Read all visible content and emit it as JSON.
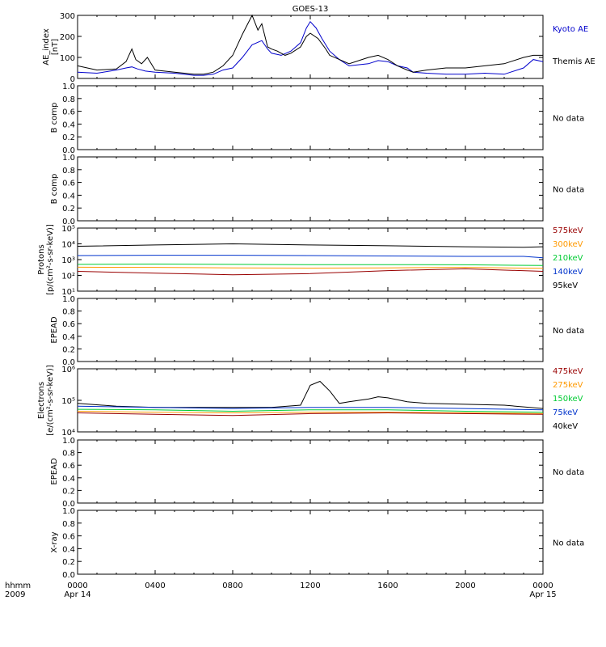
{
  "title": "GOES-13",
  "x_axis": {
    "label_line1": "hhmm",
    "label_line2": "2009",
    "ticks": [
      "0000",
      "0400",
      "0800",
      "1200",
      "1600",
      "2000",
      "0000"
    ],
    "date_labels": [
      "Apr 14",
      "Apr 15"
    ]
  },
  "chart_data": [
    {
      "type": "line",
      "ylabel": [
        "AE_index",
        "[nT]"
      ],
      "ylim": [
        0,
        300
      ],
      "yticks": [
        "0",
        "100",
        "200",
        "300"
      ],
      "x_range_hours": [
        0,
        24
      ],
      "series": [
        {
          "name": "Kyoto AE",
          "color": "#0000cc",
          "x": [
            0,
            1,
            2,
            2.5,
            2.8,
            3.1,
            3.5,
            4,
            5,
            6,
            6.5,
            7,
            7.5,
            8,
            8.5,
            9,
            9.5,
            9.8,
            10,
            10.5,
            11,
            11.5,
            11.8,
            12,
            12.3,
            12.6,
            13,
            13.5,
            14,
            15,
            15.5,
            16,
            16.5,
            17,
            17.3,
            18,
            19,
            20,
            21,
            22,
            23,
            23.5,
            24
          ],
          "y": [
            30,
            25,
            40,
            50,
            55,
            45,
            35,
            30,
            25,
            15,
            15,
            20,
            40,
            50,
            100,
            160,
            180,
            140,
            120,
            110,
            130,
            170,
            240,
            270,
            240,
            190,
            130,
            90,
            60,
            70,
            85,
            80,
            60,
            50,
            30,
            25,
            20,
            20,
            25,
            20,
            50,
            90,
            80
          ]
        },
        {
          "name": "Themis AE",
          "color": "#000000",
          "x": [
            0,
            1,
            2,
            2.5,
            2.8,
            3,
            3.3,
            3.6,
            4,
            5,
            6,
            6.5,
            7,
            7.5,
            8,
            8.5,
            9,
            9.3,
            9.5,
            9.8,
            10,
            10.3,
            10.7,
            11,
            11.5,
            11.8,
            12,
            12.4,
            12.8,
            13,
            13.5,
            14,
            15,
            15.5,
            16,
            16.5,
            17,
            17.3,
            18,
            19,
            20,
            21,
            22,
            23,
            23.5,
            24
          ],
          "y": [
            60,
            40,
            45,
            80,
            140,
            90,
            70,
            100,
            40,
            30,
            20,
            20,
            30,
            60,
            110,
            210,
            300,
            230,
            260,
            150,
            140,
            130,
            110,
            120,
            150,
            200,
            215,
            190,
            140,
            110,
            90,
            70,
            100,
            110,
            90,
            60,
            40,
            30,
            40,
            50,
            50,
            60,
            70,
            100,
            110,
            110
          ]
        }
      ]
    },
    {
      "type": "line",
      "ylabel": [
        "B comp"
      ],
      "ylim": [
        0,
        1
      ],
      "yticks": [
        "0.0",
        "0.2",
        "0.4",
        "0.6",
        "0.8",
        "1.0"
      ],
      "series": [],
      "note": "No data"
    },
    {
      "type": "line",
      "ylabel": [
        "B comp"
      ],
      "ylim": [
        0,
        1
      ],
      "yticks": [
        "0.0",
        "0.2",
        "0.4",
        "0.6",
        "0.8",
        "1.0"
      ],
      "series": [],
      "note": "No data"
    },
    {
      "type": "line",
      "ylabel": [
        "Protons",
        "[p/(cm²-s-sr-keV)]"
      ],
      "yscale": "log",
      "ylim": [
        10,
        100000
      ],
      "yticks": [
        "10¹",
        "10²",
        "10³",
        "10⁴",
        "10⁵"
      ],
      "series": [
        {
          "name": "95keV",
          "color": "#000000",
          "x": [
            0,
            4,
            8,
            12,
            16,
            20,
            23,
            24
          ],
          "y": [
            7000,
            8500,
            10000,
            8500,
            7500,
            6500,
            6000,
            6500
          ]
        },
        {
          "name": "140keV",
          "color": "#0033cc",
          "x": [
            0,
            4,
            8,
            12,
            16,
            20,
            23,
            24
          ],
          "y": [
            1800,
            1900,
            1900,
            1800,
            1700,
            1600,
            1600,
            1300
          ]
        },
        {
          "name": "210keV",
          "color": "#00cc33",
          "x": [
            0,
            4,
            8,
            12,
            16,
            20,
            24
          ],
          "y": [
            500,
            520,
            500,
            480,
            480,
            470,
            420
          ]
        },
        {
          "name": "300keV",
          "color": "#ff9900",
          "x": [
            0,
            4,
            8,
            12,
            16,
            20,
            24
          ],
          "y": [
            330,
            320,
            300,
            290,
            300,
            320,
            280
          ]
        },
        {
          "name": "575keV",
          "color": "#990000",
          "x": [
            0,
            4,
            8,
            12,
            16,
            20,
            24
          ],
          "y": [
            180,
            140,
            110,
            130,
            200,
            260,
            180
          ]
        }
      ]
    },
    {
      "type": "line",
      "ylabel": [
        "EPEAD"
      ],
      "ylim": [
        0,
        1
      ],
      "yticks": [
        "0.0",
        "0.2",
        "0.4",
        "0.6",
        "0.8",
        "1.0"
      ],
      "series": [],
      "note": "No data"
    },
    {
      "type": "line",
      "ylabel": [
        "Electrons",
        "[e/(cm²-s-sr-keV)]"
      ],
      "yscale": "log",
      "ylim": [
        10000,
        1000000
      ],
      "yticks": [
        "10⁴",
        "10⁵",
        "10⁶"
      ],
      "series": [
        {
          "name": "40keV",
          "color": "#000000",
          "x": [
            0,
            2,
            4,
            6,
            8,
            10,
            11.5,
            12,
            12.5,
            13,
            13.5,
            14,
            15,
            15.5,
            16,
            17,
            18,
            20,
            22,
            24
          ],
          "y": [
            80000,
            65000,
            60000,
            60000,
            60000,
            60000,
            70000,
            300000,
            400000,
            200000,
            80000,
            90000,
            110000,
            130000,
            120000,
            90000,
            80000,
            75000,
            70000,
            55000
          ]
        },
        {
          "name": "75keV",
          "color": "#0033cc",
          "x": [
            0,
            4,
            8,
            12,
            16,
            20,
            24
          ],
          "y": [
            65000,
            60000,
            55000,
            60000,
            60000,
            55000,
            50000
          ]
        },
        {
          "name": "150keV",
          "color": "#00cc33",
          "x": [
            0,
            4,
            8,
            12,
            16,
            20,
            24
          ],
          "y": [
            52000,
            50000,
            45000,
            50000,
            50000,
            45000,
            42000
          ]
        },
        {
          "name": "275keV",
          "color": "#ff9900",
          "x": [
            0,
            4,
            8,
            12,
            16,
            20,
            24
          ],
          "y": [
            45000,
            42000,
            40000,
            42000,
            42000,
            40000,
            38000
          ]
        },
        {
          "name": "475keV",
          "color": "#990000",
          "x": [
            0,
            4,
            8,
            12,
            16,
            20,
            24
          ],
          "y": [
            40000,
            36000,
            33000,
            38000,
            40000,
            38000,
            36000
          ]
        }
      ]
    },
    {
      "type": "line",
      "ylabel": [
        "EPEAD"
      ],
      "ylim": [
        0,
        1
      ],
      "yticks": [
        "0.0",
        "0.2",
        "0.4",
        "0.6",
        "0.8",
        "1.0"
      ],
      "series": [],
      "note": "No data"
    },
    {
      "type": "line",
      "ylabel": [
        "X-ray"
      ],
      "ylim": [
        0,
        1
      ],
      "yticks": [
        "0.0",
        "0.2",
        "0.4",
        "0.6",
        "0.8",
        "1.0"
      ],
      "series": [],
      "note": "No data"
    }
  ]
}
